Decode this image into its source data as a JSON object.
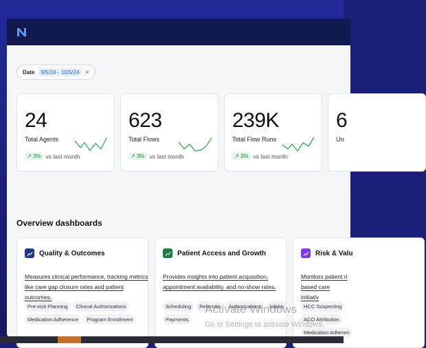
{
  "app": {
    "logo_icon": "n-logo-icon",
    "accent": "#111a4e"
  },
  "filter": {
    "label": "Date",
    "value": "9/5/24 - 10/5/24",
    "close": "×"
  },
  "stats": [
    {
      "value": "24",
      "label": "Total Agents",
      "trend": "3%",
      "trend_suffix": "vs last month",
      "trend_icon": "trend-up-icon"
    },
    {
      "value": "623",
      "label": "Total Flows",
      "trend": "3%",
      "trend_suffix": "vs last month",
      "trend_icon": "trend-up-icon"
    },
    {
      "value": "239K",
      "label": "Total Flow Runs",
      "trend": "3%",
      "trend_suffix": "vs last month",
      "trend_icon": "trend-up-icon"
    },
    {
      "value": "6",
      "label": "Un",
      "trend": "",
      "trend_suffix": "",
      "trend_icon": "trend-up-icon"
    }
  ],
  "overview": {
    "title": "Overview dashboards",
    "cards": [
      {
        "title": "Quality & Outcomes",
        "icon": "bar-chart-icon",
        "icon_color": "#1e3a8a",
        "description": "Measures clinical performance, tracking metrics like care gap closure rates and patient outcomes.",
        "tags": [
          "Pre-visit Planning",
          "Clinical Authorizations",
          "Medication Adherence",
          "Program Enrollment"
        ]
      },
      {
        "title": "Patient Access and Growth",
        "icon": "bar-chart-icon",
        "icon_color": "#15803d",
        "description": "Provides insights into patient acquisition, appointment availability, and no-show rates.",
        "tags": [
          "Scheduling",
          "Referrals",
          "Authorizations",
          "Intake",
          "Payments"
        ]
      },
      {
        "title": "Risk & Valu",
        "icon": "bar-chart-icon",
        "icon_color": "#7c3aed",
        "description": "Monitors patient ri based care initiativ",
        "tags": [
          "HCC Suspecting",
          "ACO Attribution",
          "Medication Adheren"
        ]
      }
    ]
  },
  "watermark": {
    "line1": "Activate Windows",
    "line2": "Go to Settings to activate Windows."
  },
  "colors": {
    "trend_green": "#1a8a3c",
    "link_blue": "#2563eb",
    "taskbar_accent": "#c46f2b"
  }
}
